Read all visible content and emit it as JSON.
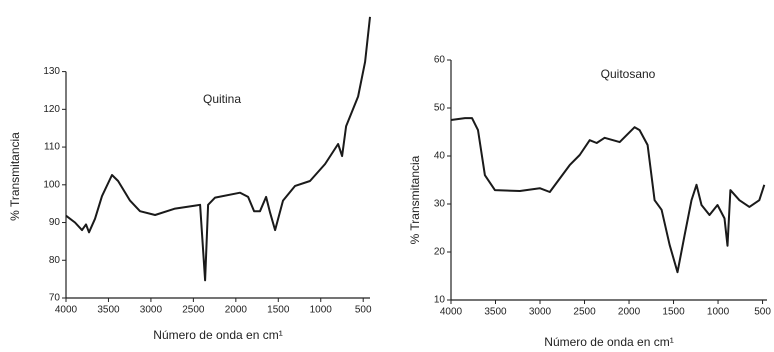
{
  "chart_data": [
    {
      "type": "line",
      "title": "Quitina",
      "xlabel": "Número de onda en cm¹",
      "ylabel": "% Transmitancia",
      "color": "#1a1a1a",
      "x": [
        4000,
        3894,
        3811,
        3764,
        3729,
        3658,
        3576,
        3458,
        3387,
        3246,
        3128,
        2951,
        2715,
        2480,
        2421,
        2362,
        2327,
        2244,
        1950,
        1856,
        1785,
        1715,
        1644,
        1597,
        1538,
        1444,
        1302,
        1126,
        949,
        796,
        749,
        702,
        560,
        478,
        420
      ],
      "values": [
        91.8,
        90,
        88,
        89.5,
        87.4,
        91,
        97,
        102.6,
        101,
        95.8,
        93,
        92,
        93.7,
        94.5,
        94.7,
        74.7,
        94.7,
        96.6,
        97.9,
        96.8,
        93,
        93,
        96.8,
        92.6,
        88,
        95.8,
        99.7,
        101,
        105.5,
        110.8,
        107.6,
        115.5,
        123.4,
        132.6,
        144.5
      ],
      "xlim": [
        4000,
        420
      ],
      "ylim": [
        70,
        145
      ],
      "xticks": [
        4000,
        3500,
        3000,
        2500,
        2000,
        1500,
        1000,
        500
      ],
      "yticks": [
        70,
        80,
        90,
        100,
        110,
        120,
        130
      ]
    },
    {
      "type": "line",
      "title": "Quitosano",
      "xlabel": "Número de onda en cm¹",
      "ylabel": "% Transmitancia",
      "color": "#1a1a1a",
      "x": [
        4000,
        3843,
        3764,
        3697,
        3619,
        3507,
        3226,
        3002,
        2890,
        2666,
        2554,
        2442,
        2363,
        2274,
        2105,
        1937,
        1881,
        1791,
        1713,
        1634,
        1544,
        1455,
        1376,
        1298,
        1242,
        1186,
        1096,
        1006,
        928,
        894,
        861,
        760,
        648,
        536,
        480
      ],
      "values": [
        47.5,
        47.9,
        47.9,
        45.4,
        36,
        32.9,
        32.7,
        33.3,
        32.5,
        38.1,
        40.2,
        43.3,
        42.7,
        43.8,
        42.9,
        46,
        45.4,
        42.3,
        30.8,
        28.8,
        21.5,
        15.8,
        23.5,
        30.8,
        34,
        29.8,
        27.7,
        29.8,
        27,
        21.3,
        32.9,
        30.8,
        29.4,
        30.8,
        34
      ],
      "xlim": [
        4000,
        450
      ],
      "ylim": [
        10,
        60
      ],
      "xticks": [
        4000,
        3500,
        3000,
        2500,
        2000,
        1500,
        1000,
        500
      ],
      "yticks": [
        10,
        20,
        30,
        40,
        50,
        60
      ]
    }
  ]
}
